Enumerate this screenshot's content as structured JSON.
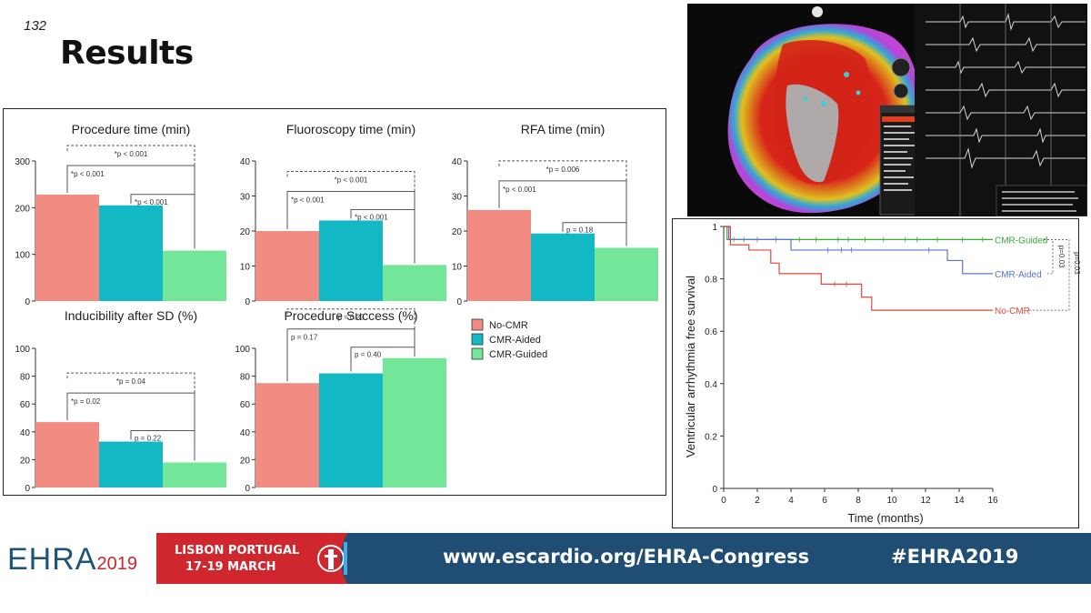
{
  "slide": {
    "number": "132",
    "title": "Results"
  },
  "legend": {
    "entries": [
      {
        "label": "No-CMR",
        "color": "#f28b82"
      },
      {
        "label": "CMR-Aided",
        "color": "#12b8c4"
      },
      {
        "label": "CMR-Guided",
        "color": "#74e69a"
      }
    ]
  },
  "chart_data": [
    {
      "type": "bar",
      "title": "Procedure time (min)",
      "categories": [
        "No-CMR",
        "CMR-Aided",
        "CMR-Guided"
      ],
      "values": [
        228,
        205,
        108
      ],
      "ylim": [
        0,
        300
      ],
      "yticks": [
        0,
        100,
        200,
        300
      ],
      "annotations": [
        {
          "label": "*p < 0.001",
          "pair": [
            0,
            2
          ],
          "style": "dashed"
        },
        {
          "label": "*p < 0.001",
          "pair": [
            0,
            2
          ],
          "style": "solid"
        },
        {
          "label": "*p < 0.001",
          "pair": [
            1,
            2
          ],
          "style": "solid"
        }
      ]
    },
    {
      "type": "bar",
      "title": "Fluoroscopy time (min)",
      "categories": [
        "No-CMR",
        "CMR-Aided",
        "CMR-Guided"
      ],
      "values": [
        20,
        23,
        10.3
      ],
      "ylim": [
        0,
        40
      ],
      "yticks": [
        0,
        10,
        20,
        30,
        40
      ],
      "annotations": [
        {
          "label": "*p < 0.001",
          "pair": [
            0,
            2
          ],
          "style": "dashed"
        },
        {
          "label": "*p < 0.001",
          "pair": [
            0,
            2
          ],
          "style": "solid"
        },
        {
          "label": "*p < 0.001",
          "pair": [
            1,
            2
          ],
          "style": "solid"
        }
      ]
    },
    {
      "type": "bar",
      "title": "RFA time (min)",
      "categories": [
        "No-CMR",
        "CMR-Aided",
        "CMR-Guided"
      ],
      "values": [
        26,
        19.3,
        15.2
      ],
      "ylim": [
        0,
        40
      ],
      "yticks": [
        0,
        10,
        20,
        30,
        40
      ],
      "annotations": [
        {
          "label": "*p = 0.006",
          "pair": [
            0,
            2
          ],
          "style": "dashed"
        },
        {
          "label": "*p < 0.001",
          "pair": [
            0,
            2
          ],
          "style": "solid"
        },
        {
          "label": "p = 0.18",
          "pair": [
            1,
            2
          ],
          "style": "solid"
        }
      ]
    },
    {
      "type": "bar",
      "title": "Inducibility after SD (%)",
      "categories": [
        "No-CMR",
        "CMR-Aided",
        "CMR-Guided"
      ],
      "values": [
        47,
        33,
        18
      ],
      "ylim": [
        0,
        100
      ],
      "yticks": [
        0,
        20,
        40,
        60,
        80,
        100
      ],
      "annotations": [
        {
          "label": "*p = 0.04",
          "pair": [
            0,
            2
          ],
          "style": "dashed"
        },
        {
          "label": "*p = 0.02",
          "pair": [
            0,
            2
          ],
          "style": "solid"
        },
        {
          "label": "p = 0.22",
          "pair": [
            1,
            2
          ],
          "style": "solid"
        }
      ]
    },
    {
      "type": "bar",
      "title": "Procedure Success (%)",
      "categories": [
        "No-CMR",
        "CMR-Aided",
        "CMR-Guided"
      ],
      "values": [
        75,
        82,
        93
      ],
      "ylim": [
        0,
        100
      ],
      "yticks": [
        0,
        20,
        40,
        60,
        80,
        100
      ],
      "annotations": [
        {
          "label": "p = 0.23",
          "pair": [
            0,
            2
          ],
          "style": "dashed"
        },
        {
          "label": "p = 0.17",
          "pair": [
            0,
            2
          ],
          "style": "solid"
        },
        {
          "label": "p = 0.40",
          "pair": [
            1,
            2
          ],
          "style": "solid"
        }
      ]
    },
    {
      "type": "line",
      "title": "",
      "xlabel": "Time (months)",
      "ylabel": "Ventricular arrhythmia free survival",
      "xlim": [
        0,
        16
      ],
      "ylim": [
        0,
        1
      ],
      "xticks": [
        0,
        2,
        4,
        6,
        8,
        10,
        12,
        14,
        16
      ],
      "yticks": [
        0,
        0.2,
        0.4,
        0.6,
        0.8,
        1
      ],
      "ytick_labels": [
        "0",
        "0.2",
        "0.4",
        "0.6",
        "0.8",
        "1"
      ],
      "p_labels": [
        "p=0.03",
        "p=0.03"
      ],
      "series": [
        {
          "name": "CMR-Guided",
          "color": "#3aa83a",
          "x": [
            0,
            0.2,
            16
          ],
          "y": [
            1,
            0.95,
            0.95
          ]
        },
        {
          "name": "CMR-Aided",
          "color": "#5b74c9",
          "x": [
            0,
            0.3,
            4,
            13.3,
            14.2,
            16
          ],
          "y": [
            1,
            0.95,
            0.91,
            0.87,
            0.82,
            0.82
          ]
        },
        {
          "name": "No-CMR",
          "color": "#e0463c",
          "x": [
            0,
            0.4,
            1.5,
            2.8,
            3.3,
            5.8,
            8.2,
            8.8,
            16
          ],
          "y": [
            1,
            0.93,
            0.91,
            0.86,
            0.82,
            0.78,
            0.73,
            0.68,
            0.68
          ]
        }
      ]
    }
  ],
  "footer": {
    "brand": "EHRA",
    "year": "2019",
    "city": "LISBON PORTUGAL",
    "dates": "17-19 MARCH",
    "url": "www.escardio.org/EHRA-Congress",
    "hashtag": "#EHRA2019"
  }
}
